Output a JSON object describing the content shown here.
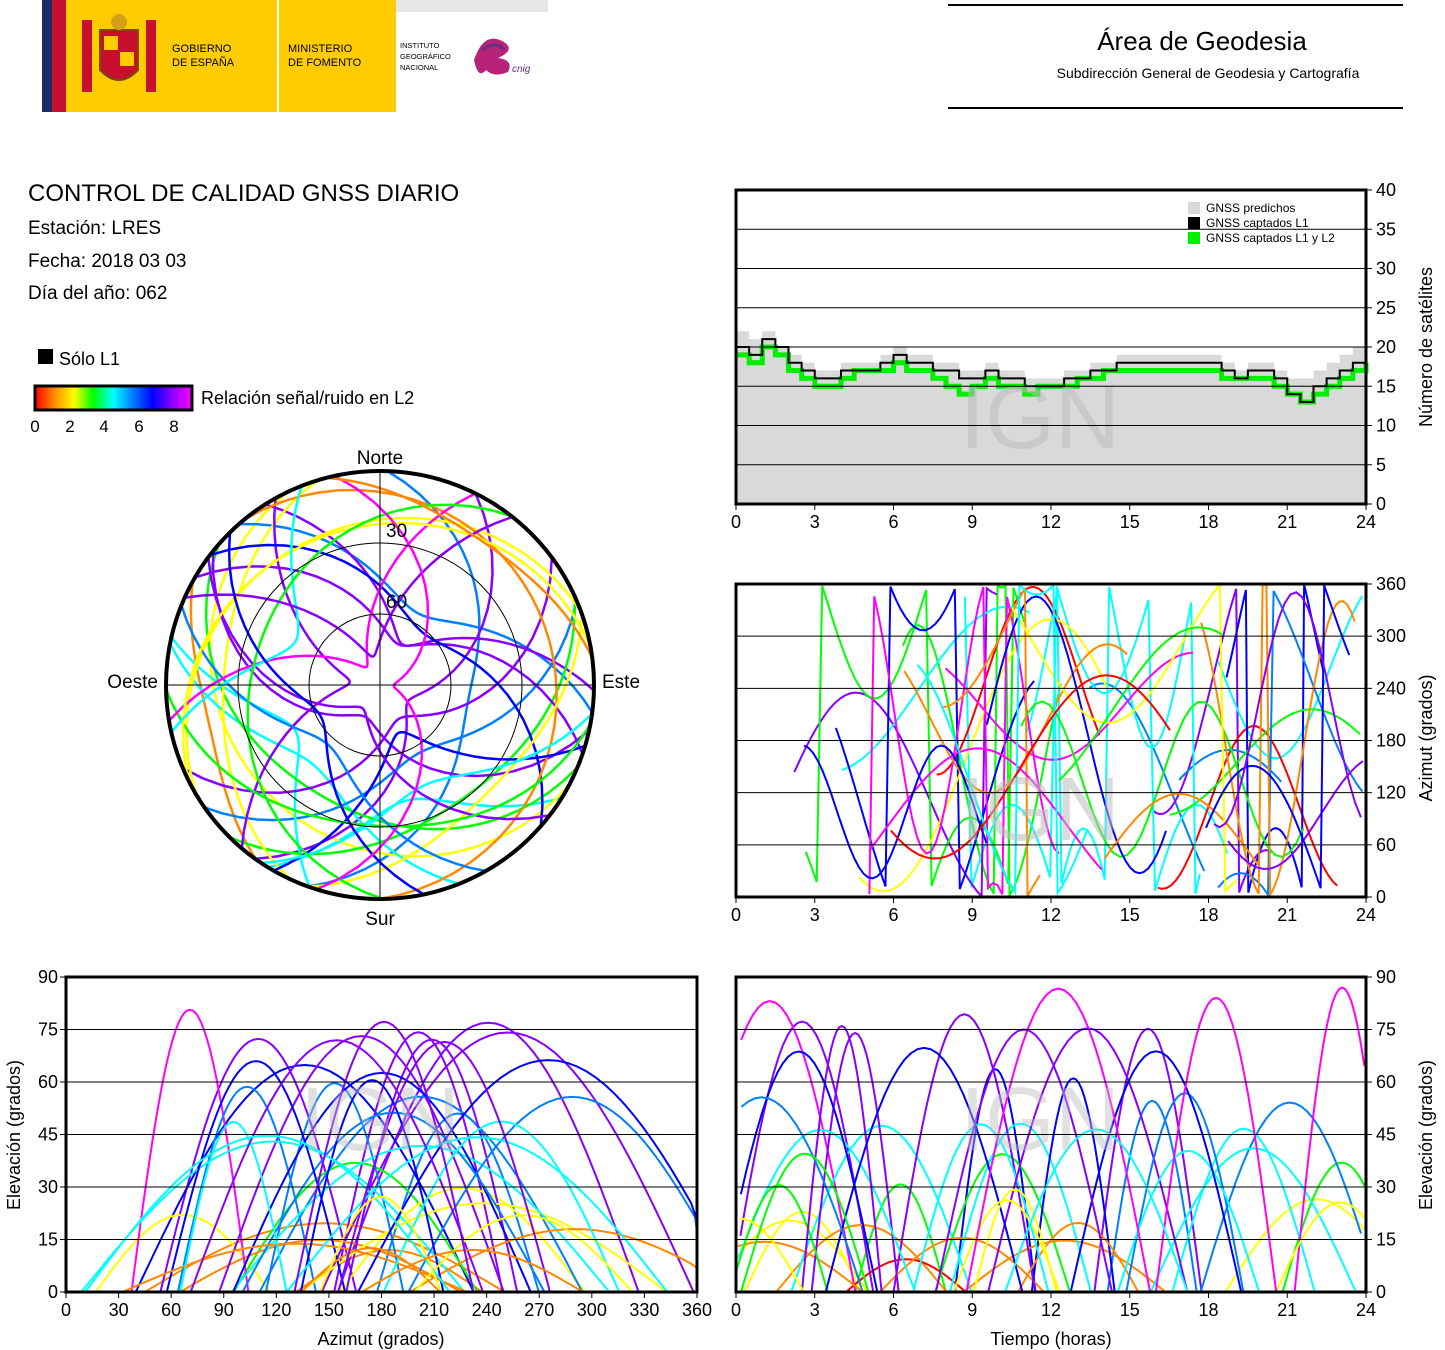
{
  "header": {
    "gov_line1": "GOBIERNO",
    "gov_line2": "DE ESPAÑA",
    "min_line1": "MINISTERIO",
    "min_line2": "DE FOMENTO",
    "ign_line1": "INSTITUTO",
    "ign_line2": "GEOGRÁFICO",
    "ign_line3": "NACIONAL",
    "cnig": "cnig",
    "area_title": "Área de Geodesia",
    "area_subtitle": "Subdirección General de Geodesia y Cartografía"
  },
  "info": {
    "title": "CONTROL DE CALIDAD GNSS DIARIO",
    "station": "Estación: LRES",
    "date": "Fecha: 2018 03 03",
    "doy": "Día del año: 062"
  },
  "legend": {
    "l1_only": "Sólo L1",
    "snr_label": "Relación señal/ruido en L2",
    "snr_ticks": [
      "0",
      "2",
      "4",
      "6",
      "8"
    ]
  },
  "watermark": "IGN",
  "colors": {
    "predicted": "#d9d9d9",
    "l1": "#000000",
    "l1l2": "#00ee00",
    "snr_scale": [
      "#ff0000",
      "#ff8800",
      "#ffff00",
      "#00ff00",
      "#00ffff",
      "#0080ff",
      "#0000ff",
      "#8800ff",
      "#ff00ff"
    ]
  },
  "chart_data": [
    {
      "id": "satellites",
      "type": "area",
      "ylabel": "Número de satélites",
      "xlim": [
        0,
        24
      ],
      "ylim": [
        0,
        40
      ],
      "x_ticks": [
        "0",
        "3",
        "6",
        "9",
        "12",
        "15",
        "18",
        "21",
        "24"
      ],
      "y_ticks": [
        "0",
        "5",
        "10",
        "15",
        "20",
        "25",
        "30",
        "35",
        "40"
      ],
      "grid": true,
      "legend_position": "top-right",
      "legend": [
        "GNSS predichos",
        "GNSS captados L1",
        "GNSS captados L1 y L2"
      ],
      "x": [
        0,
        0.5,
        1,
        1.5,
        2,
        2.5,
        3,
        3.5,
        4,
        4.5,
        5,
        5.5,
        6,
        6.5,
        7,
        7.5,
        8,
        8.5,
        9,
        9.5,
        10,
        10.5,
        11,
        11.5,
        12,
        12.5,
        13,
        13.5,
        14,
        14.5,
        15,
        15.5,
        16,
        16.5,
        17,
        17.5,
        18,
        18.5,
        19,
        19.5,
        20,
        20.5,
        21,
        21.5,
        22,
        22.5,
        23,
        23.5,
        24
      ],
      "series": [
        {
          "name": "GNSS predichos",
          "values": [
            22,
            21,
            22,
            20,
            19,
            18,
            17,
            17,
            18,
            18,
            18,
            19,
            20,
            19,
            19,
            18,
            18,
            17,
            17,
            18,
            17,
            17,
            16,
            16,
            16,
            17,
            17,
            18,
            18,
            19,
            19,
            19,
            19,
            19,
            19,
            19,
            19,
            18,
            17,
            18,
            18,
            17,
            16,
            16,
            17,
            18,
            19,
            20,
            21
          ]
        },
        {
          "name": "GNSS captados L1",
          "values": [
            20,
            19,
            21,
            20,
            18,
            17,
            16,
            16,
            17,
            17,
            17,
            18,
            19,
            18,
            18,
            17,
            17,
            16,
            16,
            17,
            16,
            16,
            15,
            15,
            15,
            16,
            16,
            17,
            17,
            18,
            18,
            18,
            18,
            18,
            18,
            18,
            18,
            17,
            16,
            17,
            17,
            16,
            14,
            13,
            15,
            16,
            17,
            18,
            19
          ]
        },
        {
          "name": "GNSS captados L1 y L2",
          "values": [
            19,
            18,
            20,
            19,
            17,
            16,
            15,
            15,
            16,
            17,
            17,
            17,
            18,
            17,
            17,
            16,
            15,
            14,
            15,
            16,
            15,
            15,
            14,
            15,
            15,
            15,
            16,
            16,
            17,
            17,
            17,
            17,
            17,
            17,
            17,
            17,
            17,
            16,
            16,
            16,
            16,
            15,
            14,
            13,
            14,
            15,
            16,
            17,
            18
          ]
        }
      ]
    },
    {
      "id": "azimuth-time",
      "type": "scatter",
      "ylabel": "Azimut (grados)",
      "xlim": [
        0,
        24
      ],
      "ylim": [
        0,
        360
      ],
      "x_ticks": [
        "0",
        "3",
        "6",
        "9",
        "12",
        "15",
        "18",
        "21",
        "24"
      ],
      "y_ticks": [
        "0",
        "60",
        "120",
        "180",
        "240",
        "300",
        "360"
      ],
      "grid": true
    },
    {
      "id": "elevation-azimuth",
      "type": "scatter",
      "xlabel": "Azimut (grados)",
      "ylabel": "Elevación (grados)",
      "xlim": [
        0,
        360
      ],
      "ylim": [
        0,
        90
      ],
      "x_ticks": [
        "0",
        "30",
        "60",
        "90",
        "120",
        "150",
        "180",
        "210",
        "240",
        "270",
        "300",
        "330",
        "360"
      ],
      "y_ticks": [
        "0",
        "15",
        "30",
        "45",
        "60",
        "75",
        "90"
      ],
      "grid": true
    },
    {
      "id": "elevation-time",
      "type": "scatter",
      "xlabel": "Tiempo (horas)",
      "ylabel": "Elevación (grados)",
      "xlim": [
        0,
        24
      ],
      "ylim": [
        0,
        90
      ],
      "x_ticks": [
        "0",
        "3",
        "6",
        "9",
        "12",
        "15",
        "18",
        "21",
        "24"
      ],
      "y_ticks": [
        "0",
        "15",
        "30",
        "45",
        "60",
        "75",
        "90"
      ],
      "grid": true
    },
    {
      "id": "skyplot",
      "type": "scatter",
      "labels": {
        "north": "Norte",
        "south": "Sur",
        "west": "Oeste",
        "east": "Este"
      },
      "ring_labels": [
        "30",
        "60"
      ]
    }
  ]
}
